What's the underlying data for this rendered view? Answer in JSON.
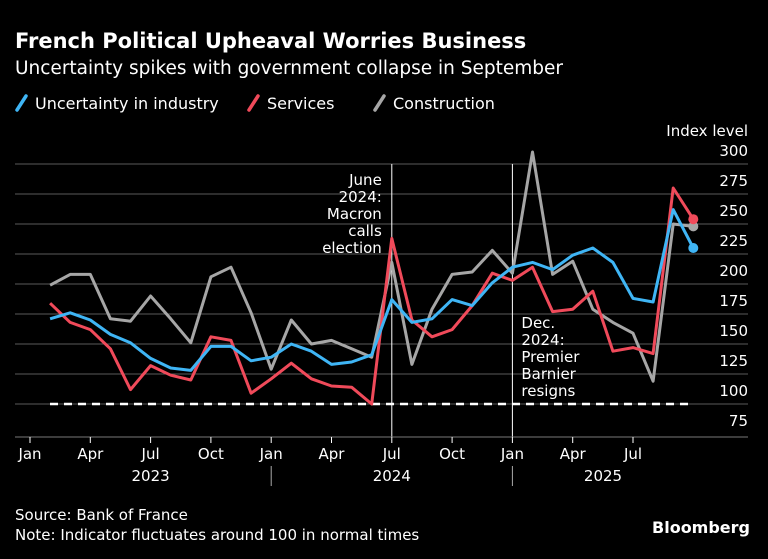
{
  "chart_data": {
    "type": "line",
    "title": "French Political Upheaval Worries Business",
    "subtitle": "Uncertainty spikes with government collapse in September",
    "ylabel": "Index level",
    "ylim": [
      75,
      300
    ],
    "yticks": [
      75,
      100,
      125,
      150,
      175,
      200,
      225,
      250,
      275,
      300
    ],
    "grid": true,
    "legend_position": "top-left",
    "x_tick_labels": [
      "Jan",
      "Apr",
      "Jul",
      "Oct",
      "Jan",
      "Apr",
      "Jul",
      "Oct",
      "Jan",
      "Apr",
      "Jul"
    ],
    "year_labels": [
      "2023",
      "2024",
      "2025"
    ],
    "x": [
      "2023-02",
      "2023-03",
      "2023-04",
      "2023-05",
      "2023-06",
      "2023-07",
      "2023-08",
      "2023-09",
      "2023-10",
      "2023-11",
      "2023-12",
      "2024-01",
      "2024-02",
      "2024-03",
      "2024-04",
      "2024-05",
      "2024-06",
      "2024-07",
      "2024-08",
      "2024-09",
      "2024-10",
      "2024-11",
      "2024-12",
      "2025-01",
      "2025-02",
      "2025-03",
      "2025-04",
      "2025-05",
      "2025-06",
      "2025-07",
      "2025-08",
      "2025-09",
      "2025-10"
    ],
    "series": [
      {
        "name": "Uncertainty in industry",
        "color": "#3fb5f5",
        "values": [
          171,
          176,
          170,
          158,
          151,
          138,
          130,
          128,
          148,
          148,
          136,
          139,
          150,
          144,
          133,
          135,
          141,
          187,
          168,
          171,
          187,
          182,
          201,
          214,
          218,
          212,
          224,
          230,
          218,
          188,
          185,
          262,
          230
        ]
      },
      {
        "name": "Services",
        "color": "#f04a5a",
        "values": [
          184,
          168,
          162,
          146,
          112,
          132,
          124,
          120,
          156,
          153,
          109,
          121,
          134,
          121,
          115,
          114,
          100,
          238,
          170,
          156,
          162,
          182,
          209,
          203,
          214,
          177,
          179,
          194,
          144,
          147,
          142,
          280,
          254
        ]
      },
      {
        "name": "Construction",
        "color": "#a6a6a6",
        "values": [
          199,
          208,
          208,
          171,
          169,
          190,
          171,
          151,
          206,
          214,
          176,
          129,
          170,
          150,
          153,
          146,
          139,
          218,
          133,
          179,
          208,
          210,
          228,
          209,
          310,
          208,
          219,
          179,
          168,
          159,
          119,
          250,
          248
        ]
      }
    ],
    "reference_line": {
      "value": 100,
      "style": "dashed"
    },
    "annotations": [
      {
        "x": "2024-07",
        "lines": [
          "June",
          "2024:",
          "Macron",
          "calls",
          "election"
        ]
      },
      {
        "x": "2025-01",
        "lines": [
          "Dec.",
          "2024:",
          "Premier",
          "Barnier",
          "resigns"
        ]
      }
    ]
  },
  "footer": {
    "source": "Source: Bank of France",
    "note": "Note: Indicator fluctuates around 100 in normal times",
    "brand": "Bloomberg"
  }
}
